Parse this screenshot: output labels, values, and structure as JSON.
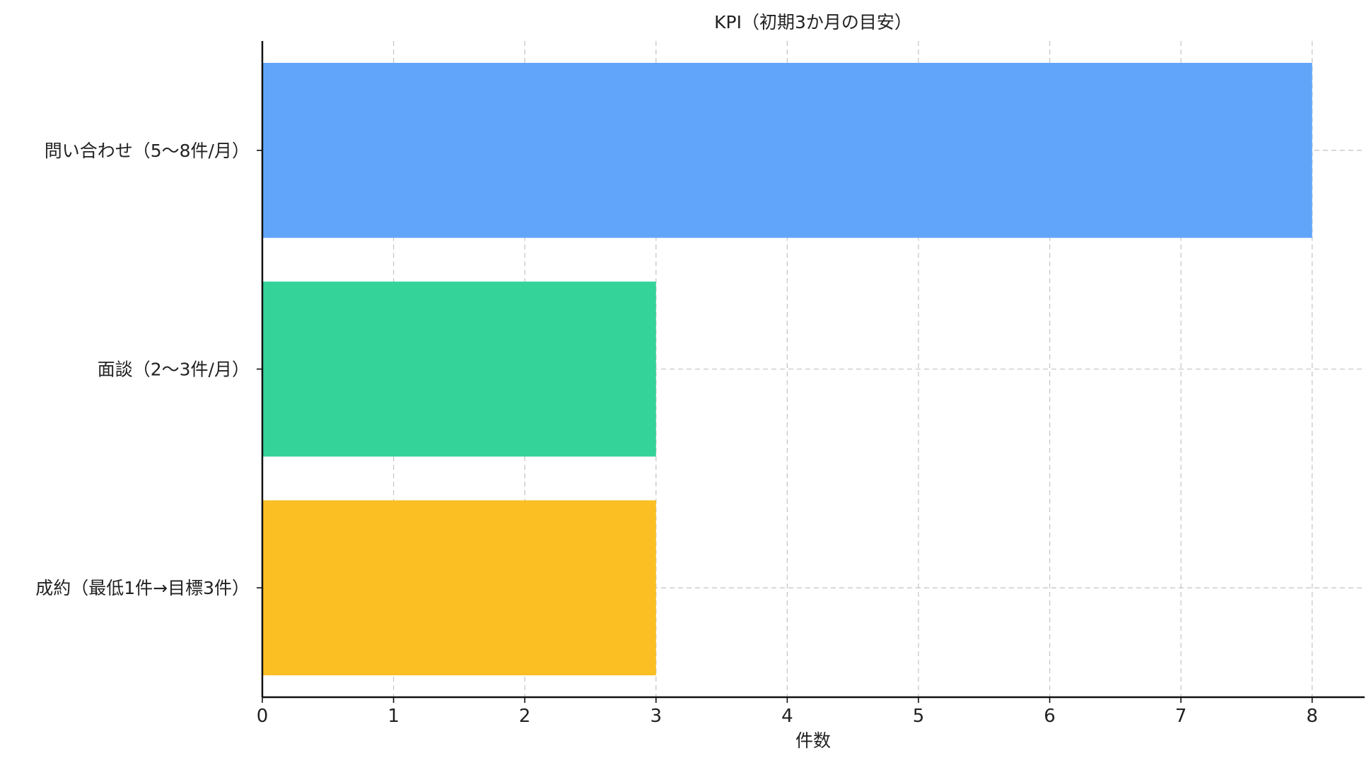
{
  "chart_data": {
    "type": "bar",
    "orientation": "horizontal",
    "title": "KPI（初期3か月の目安）",
    "xlabel": "件数",
    "ylabel": "",
    "xlim": [
      0,
      8.4
    ],
    "xticks": [
      0,
      1,
      2,
      3,
      4,
      5,
      6,
      7,
      8
    ],
    "grid": true,
    "categories": [
      "問い合わせ（5〜8件/月）",
      "面談（2〜3件/月）",
      "成約（最低1件→目標3件）"
    ],
    "values": [
      8,
      3,
      3
    ],
    "colors": [
      "#60a5fa",
      "#34d399",
      "#fbbf24"
    ]
  }
}
